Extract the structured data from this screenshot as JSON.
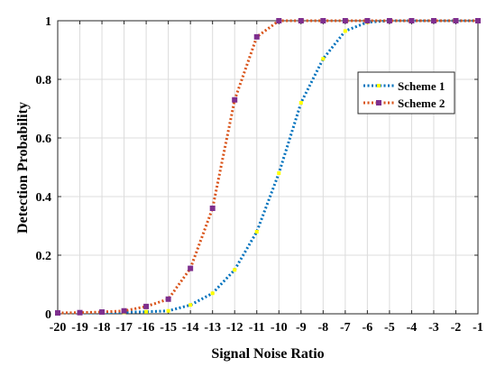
{
  "chart_data": {
    "type": "line",
    "xlabel": "Signal Noise Ratio",
    "ylabel": "Detection Probability",
    "x": [
      -20,
      -19,
      -18,
      -17,
      -16,
      -15,
      -14,
      -13,
      -12,
      -11,
      -10,
      -9,
      -8,
      -7,
      -6,
      -5,
      -4,
      -3,
      -2,
      -1
    ],
    "x_tick_labels": [
      "-20",
      "-19",
      "-18",
      "-17",
      "-16",
      "-15",
      "-14",
      "-13",
      "-12",
      "-11",
      "-10",
      "-9",
      "-8",
      "-7",
      "-6",
      "-5",
      "-4",
      "-3",
      "-2",
      "-1"
    ],
    "y_ticks": [
      0,
      0.2,
      0.4,
      0.6,
      0.8,
      1
    ],
    "y_tick_labels": [
      "0",
      "0.2",
      "0.4",
      "0.6",
      "0.8",
      "1"
    ],
    "xlim": [
      -20,
      -1
    ],
    "ylim": [
      0,
      1
    ],
    "grid": true,
    "legend_position": "top-right",
    "series": [
      {
        "name": "Scheme 1",
        "color": "#0072BD",
        "marker_color": "#FFFF00",
        "values": [
          0.003,
          0.003,
          0.004,
          0.005,
          0.007,
          0.01,
          0.03,
          0.07,
          0.15,
          0.28,
          0.48,
          0.72,
          0.87,
          0.965,
          0.995,
          1.0,
          1.0,
          1.0,
          1.0,
          1.0
        ]
      },
      {
        "name": "Scheme 2",
        "color": "#D95319",
        "marker_color": "#7E2F8E",
        "values": [
          0.003,
          0.004,
          0.006,
          0.01,
          0.025,
          0.05,
          0.155,
          0.36,
          0.73,
          0.945,
          1.0,
          1.0,
          1.0,
          1.0,
          1.0,
          1.0,
          1.0,
          1.0,
          1.0,
          1.0
        ]
      }
    ]
  }
}
